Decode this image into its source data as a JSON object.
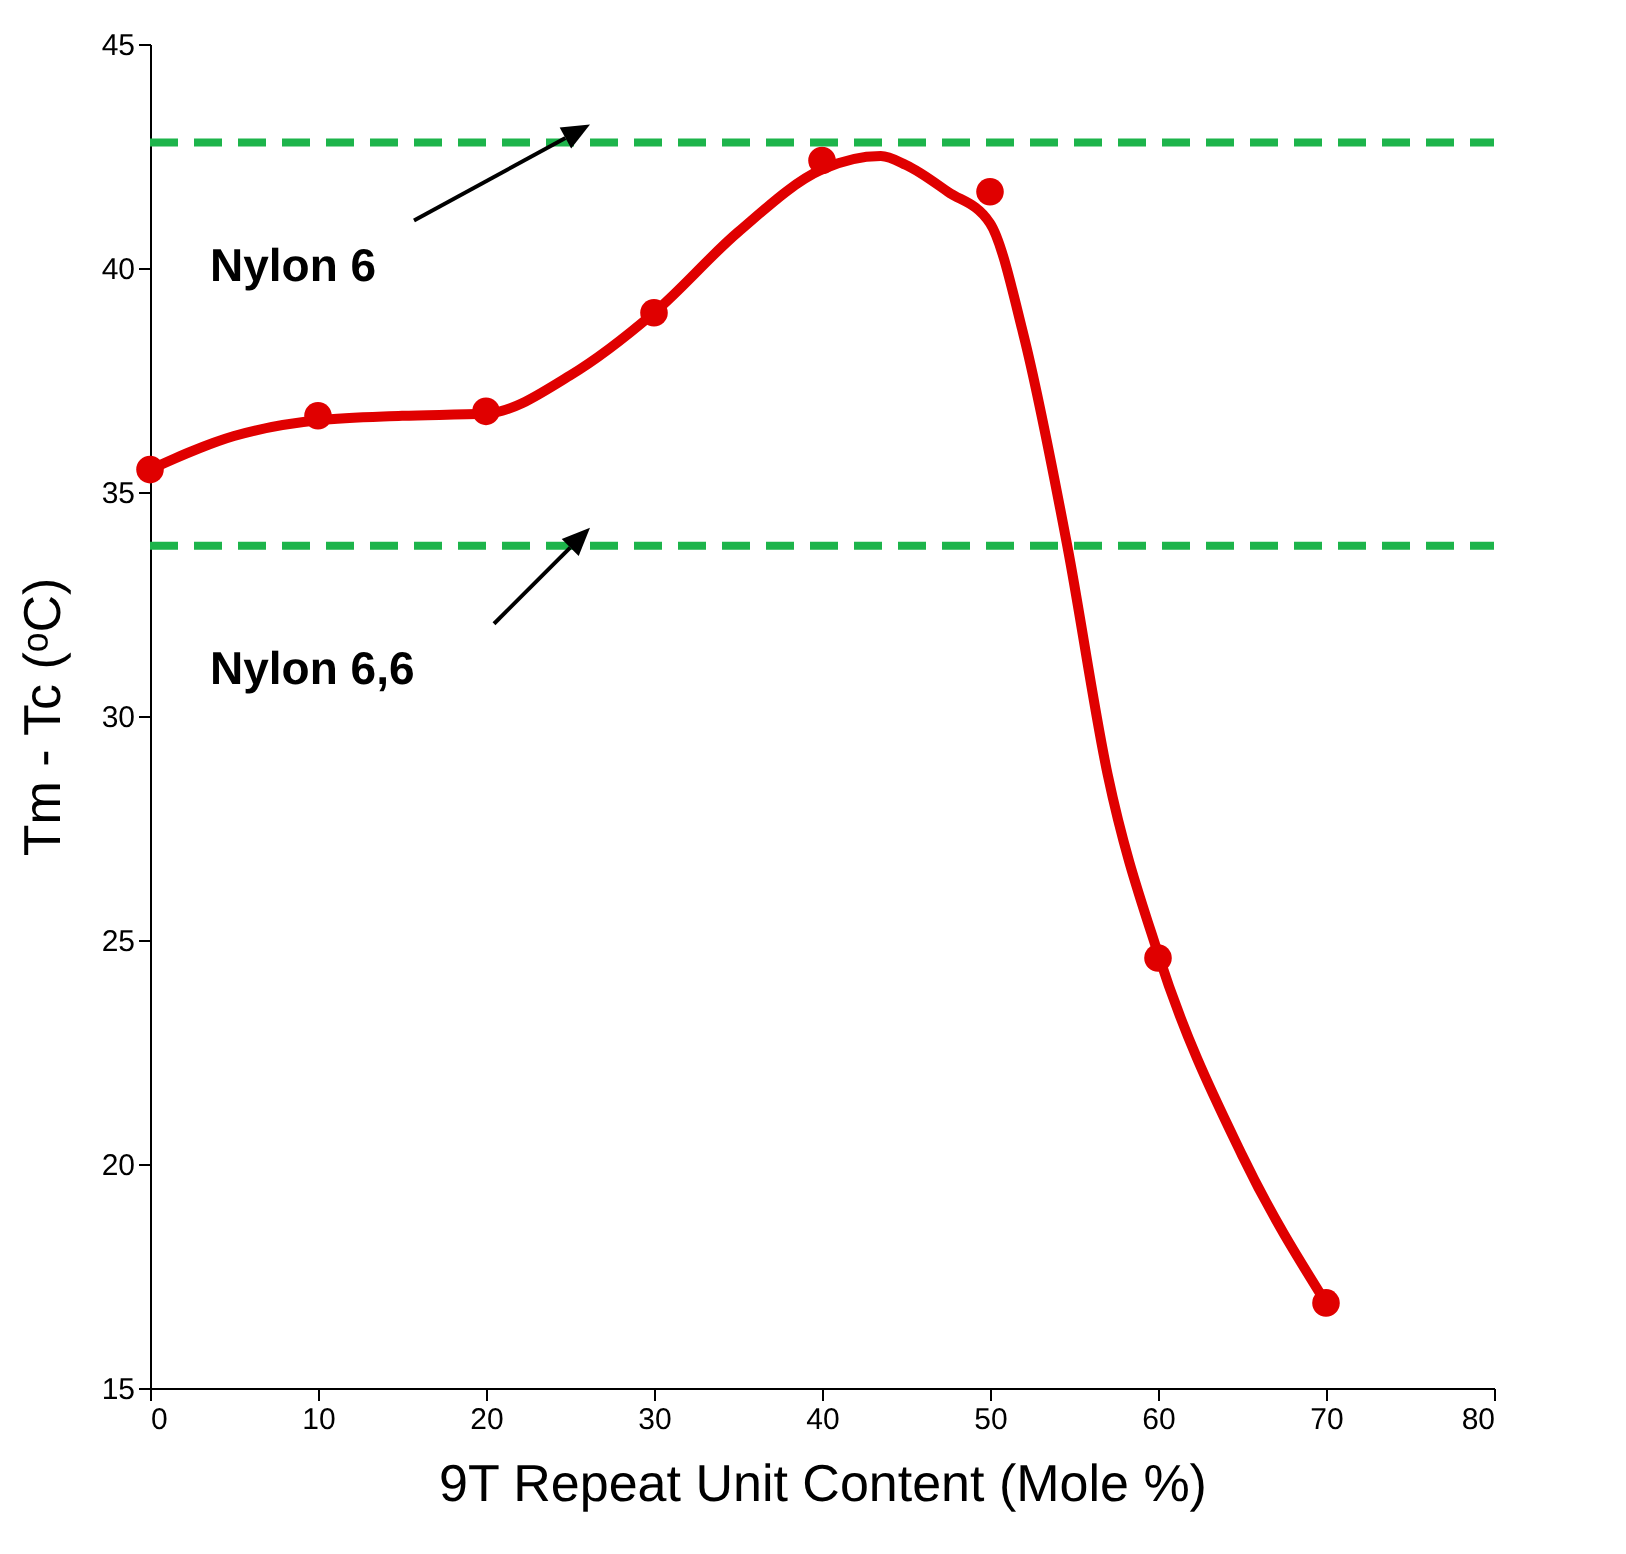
{
  "chart_data": {
    "type": "scatter",
    "xlabel": "9T Repeat Unit Content (Mole %)",
    "ylabel": "Tm - Tc (ᵒC)",
    "x": [
      0,
      10,
      20,
      30,
      40,
      50,
      60,
      70
    ],
    "series": [
      {
        "color": "#e00000",
        "marker": "circle",
        "values": [
          35.5,
          36.7,
          36.8,
          39.0,
          42.4,
          41.7,
          24.6,
          16.9
        ]
      },
      {
        "type": "line",
        "color": "#e00000",
        "x": [
          0,
          5,
          10,
          15,
          20,
          25,
          30,
          35,
          40,
          43.5,
          45,
          47.5,
          50,
          52,
          54.6,
          57,
          60,
          65,
          70
        ],
        "values": [
          35.5,
          36.25,
          36.6,
          36.7,
          36.75,
          37.6,
          39.0,
          40.8,
          42.2,
          42.5,
          42.3,
          41.7,
          41.0,
          38.5,
          33.8,
          28.7,
          24.7,
          20.2,
          16.9
        ]
      }
    ],
    "xlim": [
      0,
      80
    ],
    "xticks": [
      0,
      10,
      20,
      30,
      40,
      50,
      60,
      70,
      80
    ],
    "ylim": [
      15,
      45
    ],
    "yticks": [
      15,
      20,
      25,
      30,
      35,
      40,
      45
    ],
    "grid": false,
    "ref_lines": [
      {
        "axis": "y",
        "value": 42.8,
        "label": "Nylon 6",
        "color": "#1db44b",
        "line_style": "dashed"
      },
      {
        "axis": "y",
        "value": 33.8,
        "label": "Nylon 6,6",
        "color": "#1db44b",
        "line_style": "dashed"
      }
    ]
  }
}
